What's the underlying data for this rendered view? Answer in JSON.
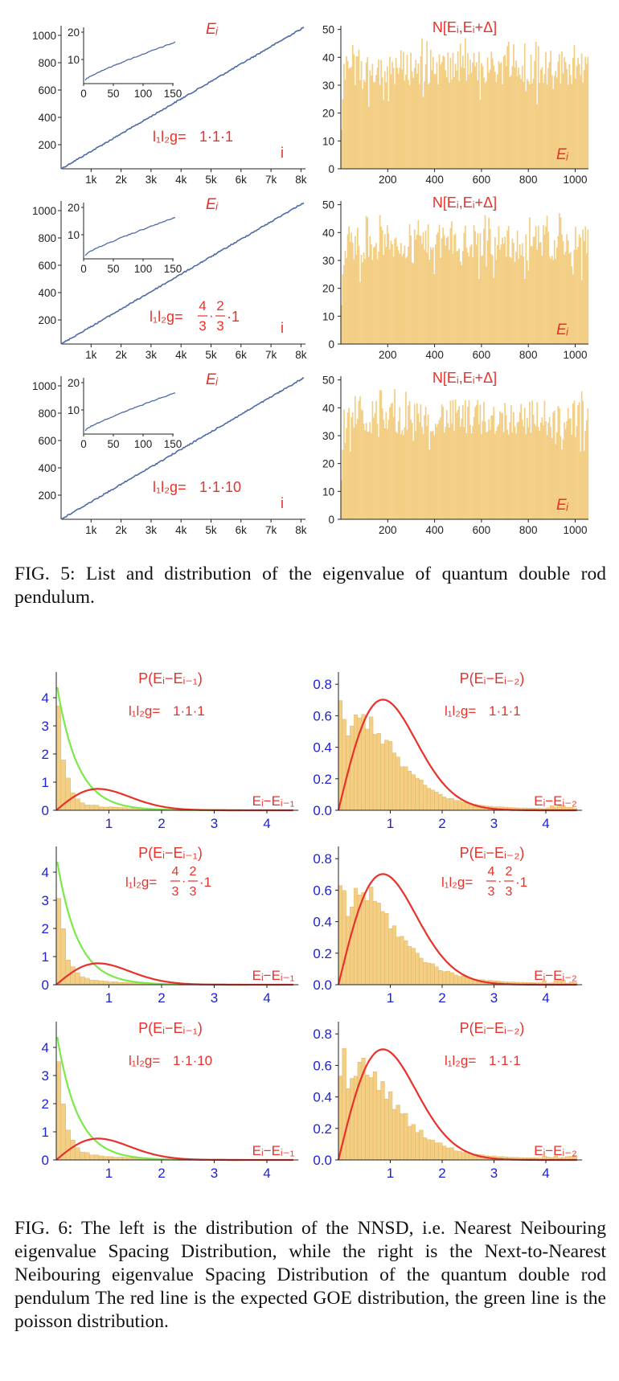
{
  "figure5": {
    "caption": "FIG. 5: List and distribution of the eigenvalue of quantum double rod pendulum.",
    "rows": [
      {
        "left": {
          "y_ticks": [
            "200",
            "400",
            "600",
            "800",
            "1000"
          ],
          "x_ticks": [
            "1k",
            "2k",
            "3k",
            "4k",
            "5k",
            "6k",
            "7k",
            "8k"
          ],
          "y_label": "Eᵢ",
          "x_label": "i",
          "param_prefix": "l₁l₂g=",
          "param_value": "1·1·1",
          "inset": {
            "x_ticks": [
              "0",
              "50",
              "100",
              "150"
            ],
            "y_ticks": [
              "10",
              "20"
            ]
          }
        },
        "right": {
          "title": "N[Eᵢ,Eᵢ+Δ]",
          "x_label": "Eᵢ",
          "y_ticks": [
            "0",
            "10",
            "20",
            "30",
            "40",
            "50"
          ],
          "x_ticks": [
            "200",
            "400",
            "600",
            "800",
            "1000"
          ]
        }
      },
      {
        "left": {
          "y_ticks": [
            "200",
            "400",
            "600",
            "800",
            "1000"
          ],
          "x_ticks": [
            "1k",
            "2k",
            "3k",
            "4k",
            "5k",
            "6k",
            "7k",
            "8k"
          ],
          "y_label": "Eᵢ",
          "x_label": "i",
          "param_prefix": "l₁l₂g=",
          "param_frac1_num": "4",
          "param_frac1_den": "3",
          "param_frac2_num": "2",
          "param_frac2_den": "3",
          "param_dot": "·",
          "param_tail": "·1",
          "inset": {
            "x_ticks": [
              "0",
              "50",
              "100",
              "150"
            ],
            "y_ticks": [
              "10",
              "20"
            ]
          }
        },
        "right": {
          "title": "N[Eᵢ,Eᵢ+Δ]",
          "x_label": "Eᵢ",
          "y_ticks": [
            "0",
            "10",
            "20",
            "30",
            "40",
            "50"
          ],
          "x_ticks": [
            "200",
            "400",
            "600",
            "800",
            "1000"
          ]
        }
      },
      {
        "left": {
          "y_ticks": [
            "200",
            "400",
            "600",
            "800",
            "1000"
          ],
          "x_ticks": [
            "1k",
            "2k",
            "3k",
            "4k",
            "5k",
            "6k",
            "7k",
            "8k"
          ],
          "y_label": "Eᵢ",
          "x_label": "i",
          "param_prefix": "l₁l₂g=",
          "param_value": "1·1·10",
          "inset": {
            "x_ticks": [
              "0",
              "50",
              "100",
              "150"
            ],
            "y_ticks": [
              "10",
              "20"
            ]
          }
        },
        "right": {
          "title": "N[Eᵢ,Eᵢ+Δ]",
          "x_label": "Eᵢ",
          "y_ticks": [
            "0",
            "10",
            "20",
            "30",
            "40",
            "50"
          ],
          "x_ticks": [
            "200",
            "400",
            "600",
            "800",
            "1000"
          ]
        }
      }
    ]
  },
  "figure6": {
    "caption": "FIG. 6: The left is the distribution of the NNSD, i.e. Nearest Neibouring eigenvalue Spacing Distribution, while the right is the Next-to-Nearest Neibouring eigenvalue Spacing Distribution of the quantum double rod pendulum The red line is the expected GOE distribution, the green line is the poisson distribution.",
    "rows": [
      {
        "left": {
          "title": "P(Eᵢ−Eᵢ₋₁)",
          "x_label": "Eᵢ−Eᵢ₋₁",
          "param_prefix": "l₁l₂g=",
          "param_value": "1·1·1",
          "y_ticks": [
            "0",
            "1",
            "2",
            "3",
            "4"
          ],
          "x_ticks": [
            "1",
            "2",
            "3",
            "4"
          ]
        },
        "right": {
          "title": "P(Eᵢ−Eᵢ₋₂)",
          "x_label": "Eᵢ−Eᵢ₋₂",
          "param_prefix": "l₁l₂g=",
          "param_value": "1·1·1",
          "y_ticks": [
            "0.0",
            "0.2",
            "0.4",
            "0.6",
            "0.8"
          ],
          "x_ticks": [
            "1",
            "2",
            "3",
            "4"
          ]
        }
      },
      {
        "left": {
          "title": "P(Eᵢ−Eᵢ₋₁)",
          "x_label": "Eᵢ−Eᵢ₋₁",
          "param_prefix": "l₁l₂g=",
          "param_frac1_num": "4",
          "param_frac1_den": "3",
          "param_frac2_num": "2",
          "param_frac2_den": "3",
          "param_dot": "·",
          "param_tail": "·1",
          "y_ticks": [
            "0",
            "1",
            "2",
            "3",
            "4"
          ],
          "x_ticks": [
            "1",
            "2",
            "3",
            "4"
          ]
        },
        "right": {
          "title": "P(Eᵢ−Eᵢ₋₂)",
          "x_label": "Eᵢ−Eᵢ₋₂",
          "param_prefix": "l₁l₂g=",
          "param_frac1_num": "4",
          "param_frac1_den": "3",
          "param_frac2_num": "2",
          "param_frac2_den": "3",
          "param_dot": "·",
          "param_tail": "·1",
          "y_ticks": [
            "0.0",
            "0.2",
            "0.4",
            "0.6",
            "0.8"
          ],
          "x_ticks": [
            "1",
            "2",
            "3",
            "4"
          ]
        }
      },
      {
        "left": {
          "title": "P(Eᵢ−Eᵢ₋₁)",
          "x_label": "Eᵢ−Eᵢ₋₁",
          "param_prefix": "l₁l₂g=",
          "param_value": "1·1·10",
          "y_ticks": [
            "0",
            "1",
            "2",
            "3",
            "4"
          ],
          "x_ticks": [
            "1",
            "2",
            "3",
            "4"
          ]
        },
        "right": {
          "title": "P(Eᵢ−Eᵢ₋₂)",
          "x_label": "Eᵢ−Eᵢ₋₂",
          "param_prefix": "l₁l₂g=",
          "param_value": "1·1·1",
          "y_ticks": [
            "0.0",
            "0.2",
            "0.4",
            "0.6",
            "0.8"
          ],
          "x_ticks": [
            "1",
            "2",
            "3",
            "4"
          ]
        }
      }
    ]
  },
  "colors": {
    "red": "#e8312a",
    "green": "#7ce84a",
    "blue_tick": "#1f22d6",
    "bar_fill": "#f3cf86",
    "bar_edge": "#e2ad55",
    "line_blue": "#4d6ba8",
    "axis": "#222222"
  },
  "chart_data": [
    {
      "type": "line",
      "title": "",
      "series": [
        {
          "name": "Eᵢ",
          "x": [
            0,
            8200
          ],
          "y": [
            0,
            1060
          ]
        }
      ],
      "xlim": [
        0,
        8200
      ],
      "ylim": [
        0,
        1100
      ],
      "inset": {
        "type": "line",
        "x": [
          0,
          10,
          30,
          60,
          100,
          150
        ],
        "y": [
          2,
          10,
          13,
          16,
          19,
          23
        ],
        "xlim": [
          0,
          150
        ],
        "ylim": [
          0,
          25
        ]
      }
    },
    {
      "type": "bar",
      "title": "N[Eᵢ,Eᵢ+Δ]",
      "approx_level": 38,
      "xlim": [
        0,
        1060
      ],
      "ylim": [
        0,
        50
      ]
    },
    {
      "type": "line",
      "title": "",
      "series": [
        {
          "name": "Eᵢ",
          "x": [
            0,
            8200
          ],
          "y": [
            0,
            1060
          ]
        }
      ],
      "xlim": [
        0,
        8200
      ],
      "ylim": [
        0,
        1100
      ]
    },
    {
      "type": "bar",
      "title": "N[Eᵢ,Eᵢ+Δ]",
      "approx_level": 38,
      "xlim": [
        0,
        1060
      ],
      "ylim": [
        0,
        50
      ]
    },
    {
      "type": "line",
      "title": "",
      "series": [
        {
          "name": "Eᵢ",
          "x": [
            0,
            8200
          ],
          "y": [
            0,
            1060
          ]
        }
      ],
      "xlim": [
        0,
        8200
      ],
      "ylim": [
        0,
        1100
      ]
    },
    {
      "type": "bar",
      "title": "N[Eᵢ,Eᵢ+Δ]",
      "approx_level": 38,
      "xlim": [
        0,
        1060
      ],
      "ylim": [
        0,
        50
      ]
    },
    {
      "type": "bar",
      "title": "P(Eᵢ−Eᵢ₋₁)",
      "xlim": [
        0,
        4.5
      ],
      "ylim": [
        0,
        4.6
      ],
      "values_start": [
        4.5,
        2.8,
        1.8,
        1.0,
        0.55,
        0.35
      ]
    },
    {
      "type": "bar",
      "title": "P(Eᵢ−Eᵢ₋₂)",
      "xlim": [
        0,
        4.6
      ],
      "ylim": [
        0,
        0.9
      ],
      "peak": [
        0.35,
        0.85
      ]
    },
    {
      "type": "bar",
      "title": "P(Eᵢ−Eᵢ₋₁)",
      "xlim": [
        0,
        4.5
      ],
      "ylim": [
        0,
        4.6
      ],
      "values_start": [
        4.5,
        2.8,
        1.8,
        1.0,
        0.55,
        0.35
      ]
    },
    {
      "type": "bar",
      "title": "P(Eᵢ−Eᵢ₋₂)",
      "xlim": [
        0,
        4.6
      ],
      "ylim": [
        0,
        0.9
      ],
      "peak": [
        0.35,
        0.82
      ]
    },
    {
      "type": "bar",
      "title": "P(Eᵢ−Eᵢ₋₁)",
      "xlim": [
        0,
        4.5
      ],
      "ylim": [
        0,
        4.6
      ],
      "values_start": [
        4.5,
        2.8,
        1.8,
        1.0,
        0.55,
        0.35
      ]
    },
    {
      "type": "bar",
      "title": "P(Eᵢ−Eᵢ₋₂)",
      "xlim": [
        0,
        4.6
      ],
      "ylim": [
        0,
        0.9
      ],
      "peak": [
        0.45,
        0.87
      ]
    }
  ]
}
